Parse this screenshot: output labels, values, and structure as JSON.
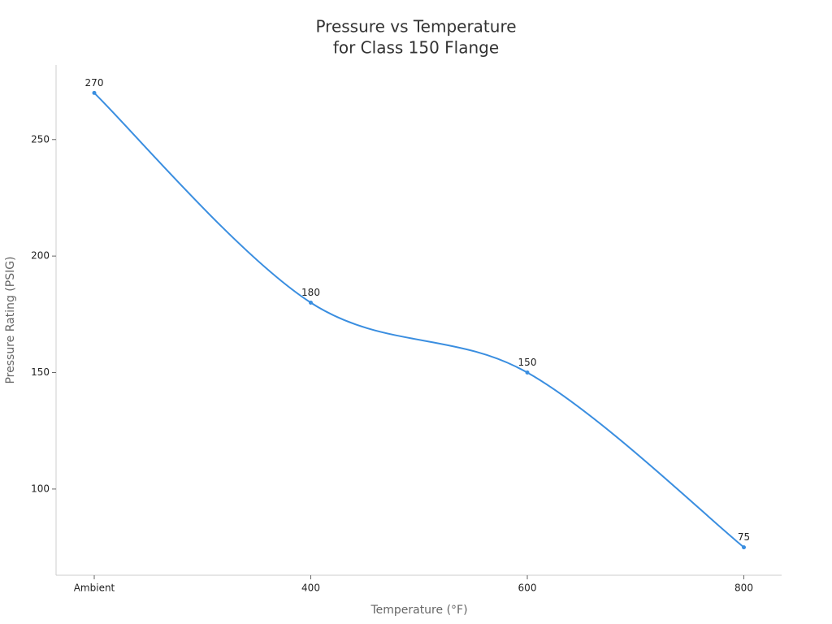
{
  "chart_data": {
    "type": "line",
    "title": [
      "Pressure vs Temperature",
      "for Class 150 Flange"
    ],
    "x_label": "Temperature (°F)",
    "y_label": "Pressure Rating (PSIG)",
    "categories": [
      "Ambient",
      "400",
      "600",
      "800"
    ],
    "series": [
      {
        "name": "Pressure Rating",
        "color": "#3a8ee0",
        "values": [
          270,
          180,
          150,
          75
        ]
      }
    ],
    "ylim": [
      63,
      282
    ],
    "yticks": [
      100,
      150,
      200,
      250
    ],
    "grid": false,
    "smooth": true,
    "data_labels": true
  }
}
